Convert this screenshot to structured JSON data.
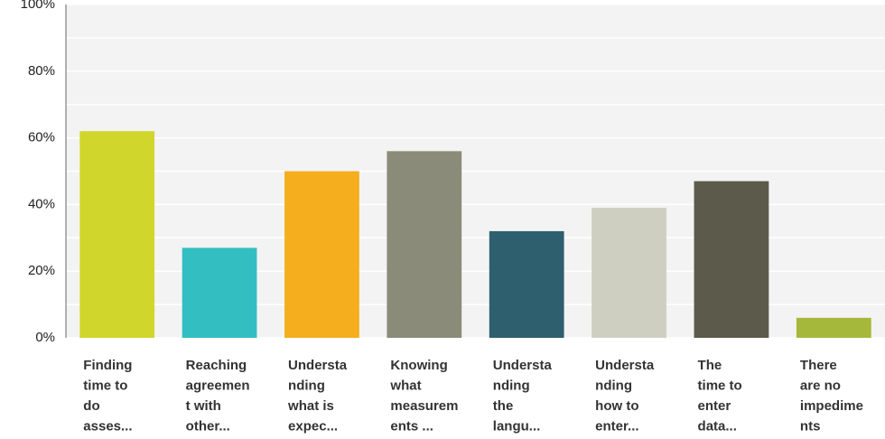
{
  "chart_data": {
    "type": "bar",
    "categories": [
      [
        "Finding",
        "time to",
        "do",
        "asses..."
      ],
      [
        "Reaching",
        "agreemen",
        "t with",
        "other..."
      ],
      [
        "Understa",
        "nding",
        "what is",
        "expec..."
      ],
      [
        "Knowing",
        "what",
        "measurem",
        "ents ..."
      ],
      [
        "Understa",
        "nding",
        "the",
        "langu..."
      ],
      [
        "Understa",
        "nding",
        "how to",
        "enter..."
      ],
      [
        "The",
        "time to",
        "enter",
        "data..."
      ],
      [
        "There",
        "are no",
        "impedime",
        "nts"
      ]
    ],
    "values": [
      62,
      27,
      50,
      56,
      32,
      39,
      47,
      6
    ],
    "colors": [
      "#d0d62b",
      "#33bec1",
      "#f5ae1e",
      "#8a8b79",
      "#2d5f6e",
      "#cfcfc1",
      "#5c5a4a",
      "#a5b83c"
    ],
    "ylim": [
      0,
      100
    ],
    "yticks": [
      {
        "value": 0,
        "label": "0%"
      },
      {
        "value": 20,
        "label": "20%"
      },
      {
        "value": 40,
        "label": "40%"
      },
      {
        "value": 60,
        "label": "60%"
      },
      {
        "value": 80,
        "label": "80%"
      },
      {
        "value": 100,
        "label": "100%"
      }
    ],
    "minor_yticks": [
      10,
      30,
      50,
      70,
      90
    ],
    "grid": true
  }
}
